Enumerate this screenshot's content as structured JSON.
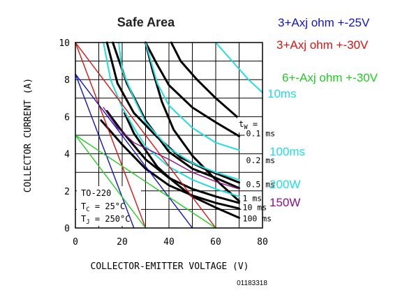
{
  "chart_data": {
    "type": "line",
    "title": "Safe Area",
    "xlabel": "COLLECTOR-EMITTER VOLTAGE (V)",
    "ylabel": "COLLECTOR CURRENT (A)",
    "xlim": [
      0,
      80
    ],
    "ylim": [
      0,
      10
    ],
    "x_ticks": [
      0,
      20,
      40,
      60,
      80
    ],
    "y_ticks": [
      0,
      2,
      4,
      6,
      8,
      10
    ],
    "grid": true,
    "figure_code": "01183318",
    "device_note": {
      "package": "TO-220",
      "tc": "25°C",
      "tj": "250°C",
      "tc_label": "T",
      "tc_sub": "C",
      "tj_label": "T",
      "tj_sub": "J",
      "eq": " = "
    },
    "tw_label": {
      "t": "t",
      "sub": "W",
      "eq": " ="
    },
    "pulse_labels": [
      {
        "text": "0.1 ms",
        "at": [
          73,
          4.95
        ]
      },
      {
        "text": "0.2 ms",
        "at": [
          73,
          3.5
        ]
      },
      {
        "text": "0.5 ms",
        "at": [
          73,
          2.2
        ]
      },
      {
        "text": "1 ms",
        "at": [
          71.5,
          1.45
        ]
      },
      {
        "text": "10 ms",
        "at": [
          71.5,
          0.95
        ]
      },
      {
        "text": "100 ms",
        "at": [
          71.5,
          0.35
        ]
      }
    ],
    "legend_notes": [
      {
        "text": "3+Axj ohm +-25V",
        "color": "#1111cc"
      },
      {
        "text": "3+Axj ohm +-30V",
        "color": "#dd1111"
      },
      {
        "text": "6+-Axj ohm +-30V",
        "color": "#22cc22"
      },
      {
        "text": "10ms",
        "color": "#22dddd"
      },
      {
        "text": "100ms",
        "color": "#22dddd"
      },
      {
        "text": "200W",
        "color": "#22dddd"
      },
      {
        "text": "150W",
        "color": "#881188"
      }
    ],
    "series": [
      {
        "color": "#000000",
        "points": [
          [
            13.5,
            10
          ],
          [
            18,
            7.8
          ],
          [
            25,
            6.2
          ],
          [
            35,
            4.9
          ],
          [
            45,
            3.8
          ],
          [
            55,
            3.2
          ],
          [
            70,
            2.45
          ]
        ]
      },
      {
        "color": "#000000",
        "points": [
          [
            16,
            10
          ],
          [
            22,
            7.8
          ],
          [
            30,
            5.8
          ],
          [
            40,
            4.1
          ],
          [
            50,
            3.2
          ],
          [
            60,
            2.7
          ],
          [
            70,
            2.15
          ]
        ]
      },
      {
        "color": "#000000",
        "points": [
          [
            13.5,
            6.3
          ],
          [
            20,
            5.2
          ],
          [
            30,
            3.7
          ],
          [
            40,
            2.7
          ],
          [
            50,
            2.1
          ],
          [
            60,
            1.7
          ],
          [
            70,
            1.35
          ]
        ]
      },
      {
        "color": "#000000",
        "points": [
          [
            11,
            5.8
          ],
          [
            20,
            4.5
          ],
          [
            30,
            3.2
          ],
          [
            40,
            2.3
          ],
          [
            50,
            1.75
          ],
          [
            60,
            1.35
          ],
          [
            70,
            1.05
          ]
        ]
      },
      {
        "color": "#000000",
        "points": [
          [
            21,
            6.2
          ],
          [
            25,
            5.1
          ],
          [
            30,
            4.2
          ],
          [
            35,
            3.3
          ],
          [
            42,
            2.5
          ],
          [
            50,
            1.7
          ],
          [
            60,
            1.1
          ],
          [
            70,
            0.55
          ]
        ]
      },
      {
        "color": "#000000",
        "points": [
          [
            30,
            10
          ],
          [
            33,
            8.5
          ],
          [
            37,
            6.8
          ],
          [
            42,
            5.3
          ],
          [
            50,
            3.9
          ],
          [
            60,
            2.6
          ],
          [
            70,
            1.45
          ]
        ]
      },
      {
        "color": "#000000",
        "points": [
          [
            30,
            10
          ],
          [
            35,
            8.8
          ],
          [
            40,
            7.7
          ],
          [
            50,
            6.5
          ],
          [
            60,
            5.7
          ],
          [
            70,
            4.95
          ]
        ]
      },
      {
        "color": "#000000",
        "points": [
          [
            41,
            10
          ],
          [
            45,
            9
          ],
          [
            52,
            8
          ],
          [
            60,
            7
          ],
          [
            70,
            5.9
          ]
        ]
      },
      {
        "color": "#22dddd",
        "points": [
          [
            60,
            10
          ],
          [
            67,
            9
          ],
          [
            74,
            8
          ],
          [
            80,
            7.3
          ]
        ]
      },
      {
        "color": "#22dddd",
        "points": [
          [
            30,
            10
          ],
          [
            35,
            7.8
          ],
          [
            40,
            6.6
          ],
          [
            50,
            5.4
          ],
          [
            60,
            4.6
          ],
          [
            70,
            4.2
          ]
        ]
      },
      {
        "color": "#22dddd",
        "points": [
          [
            18.5,
            10
          ],
          [
            20,
            8.5
          ],
          [
            25,
            7
          ],
          [
            30,
            5.7
          ],
          [
            40,
            4.3
          ],
          [
            50,
            3.5
          ],
          [
            60,
            3.0
          ],
          [
            70,
            2.6
          ]
        ]
      },
      {
        "color": "#22dddd",
        "points": [
          [
            12,
            10
          ],
          [
            15,
            8
          ],
          [
            20,
            6.5
          ],
          [
            25,
            5.4
          ],
          [
            30,
            4.4
          ],
          [
            40,
            3.3
          ],
          [
            50,
            2.6
          ],
          [
            60,
            2.1
          ],
          [
            70,
            1.7
          ]
        ]
      },
      {
        "color": "#881188",
        "points": [
          [
            12,
            6.5
          ],
          [
            18,
            5.4
          ],
          [
            25,
            4.6
          ],
          [
            30,
            4.3
          ],
          [
            40,
            3.7
          ],
          [
            50,
            3.0
          ],
          [
            60,
            2.5
          ],
          [
            70,
            2.1
          ]
        ]
      },
      {
        "color": "#dd1111",
        "points": [
          [
            0,
            10
          ],
          [
            30,
            0
          ]
        ]
      },
      {
        "color": "#dd1111",
        "points": [
          [
            0,
            10
          ],
          [
            60,
            0
          ]
        ]
      },
      {
        "color": "#1111cc",
        "points": [
          [
            0,
            8.3
          ],
          [
            25,
            0
          ]
        ]
      },
      {
        "color": "#1111cc",
        "points": [
          [
            0,
            8.3
          ],
          [
            50,
            0
          ]
        ]
      },
      {
        "color": "#22cc22",
        "points": [
          [
            0,
            5
          ],
          [
            30,
            0
          ]
        ]
      },
      {
        "color": "#22cc22",
        "points": [
          [
            0,
            5
          ],
          [
            60,
            0
          ]
        ]
      }
    ]
  }
}
